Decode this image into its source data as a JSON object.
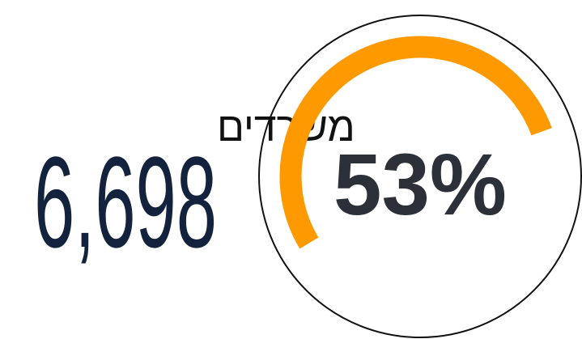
{
  "stat": {
    "label": "משרדים",
    "value": "6,698"
  },
  "gauge": {
    "value": 53,
    "value_label": "53%",
    "range": [
      0,
      100
    ],
    "color": "#ff9900"
  }
}
